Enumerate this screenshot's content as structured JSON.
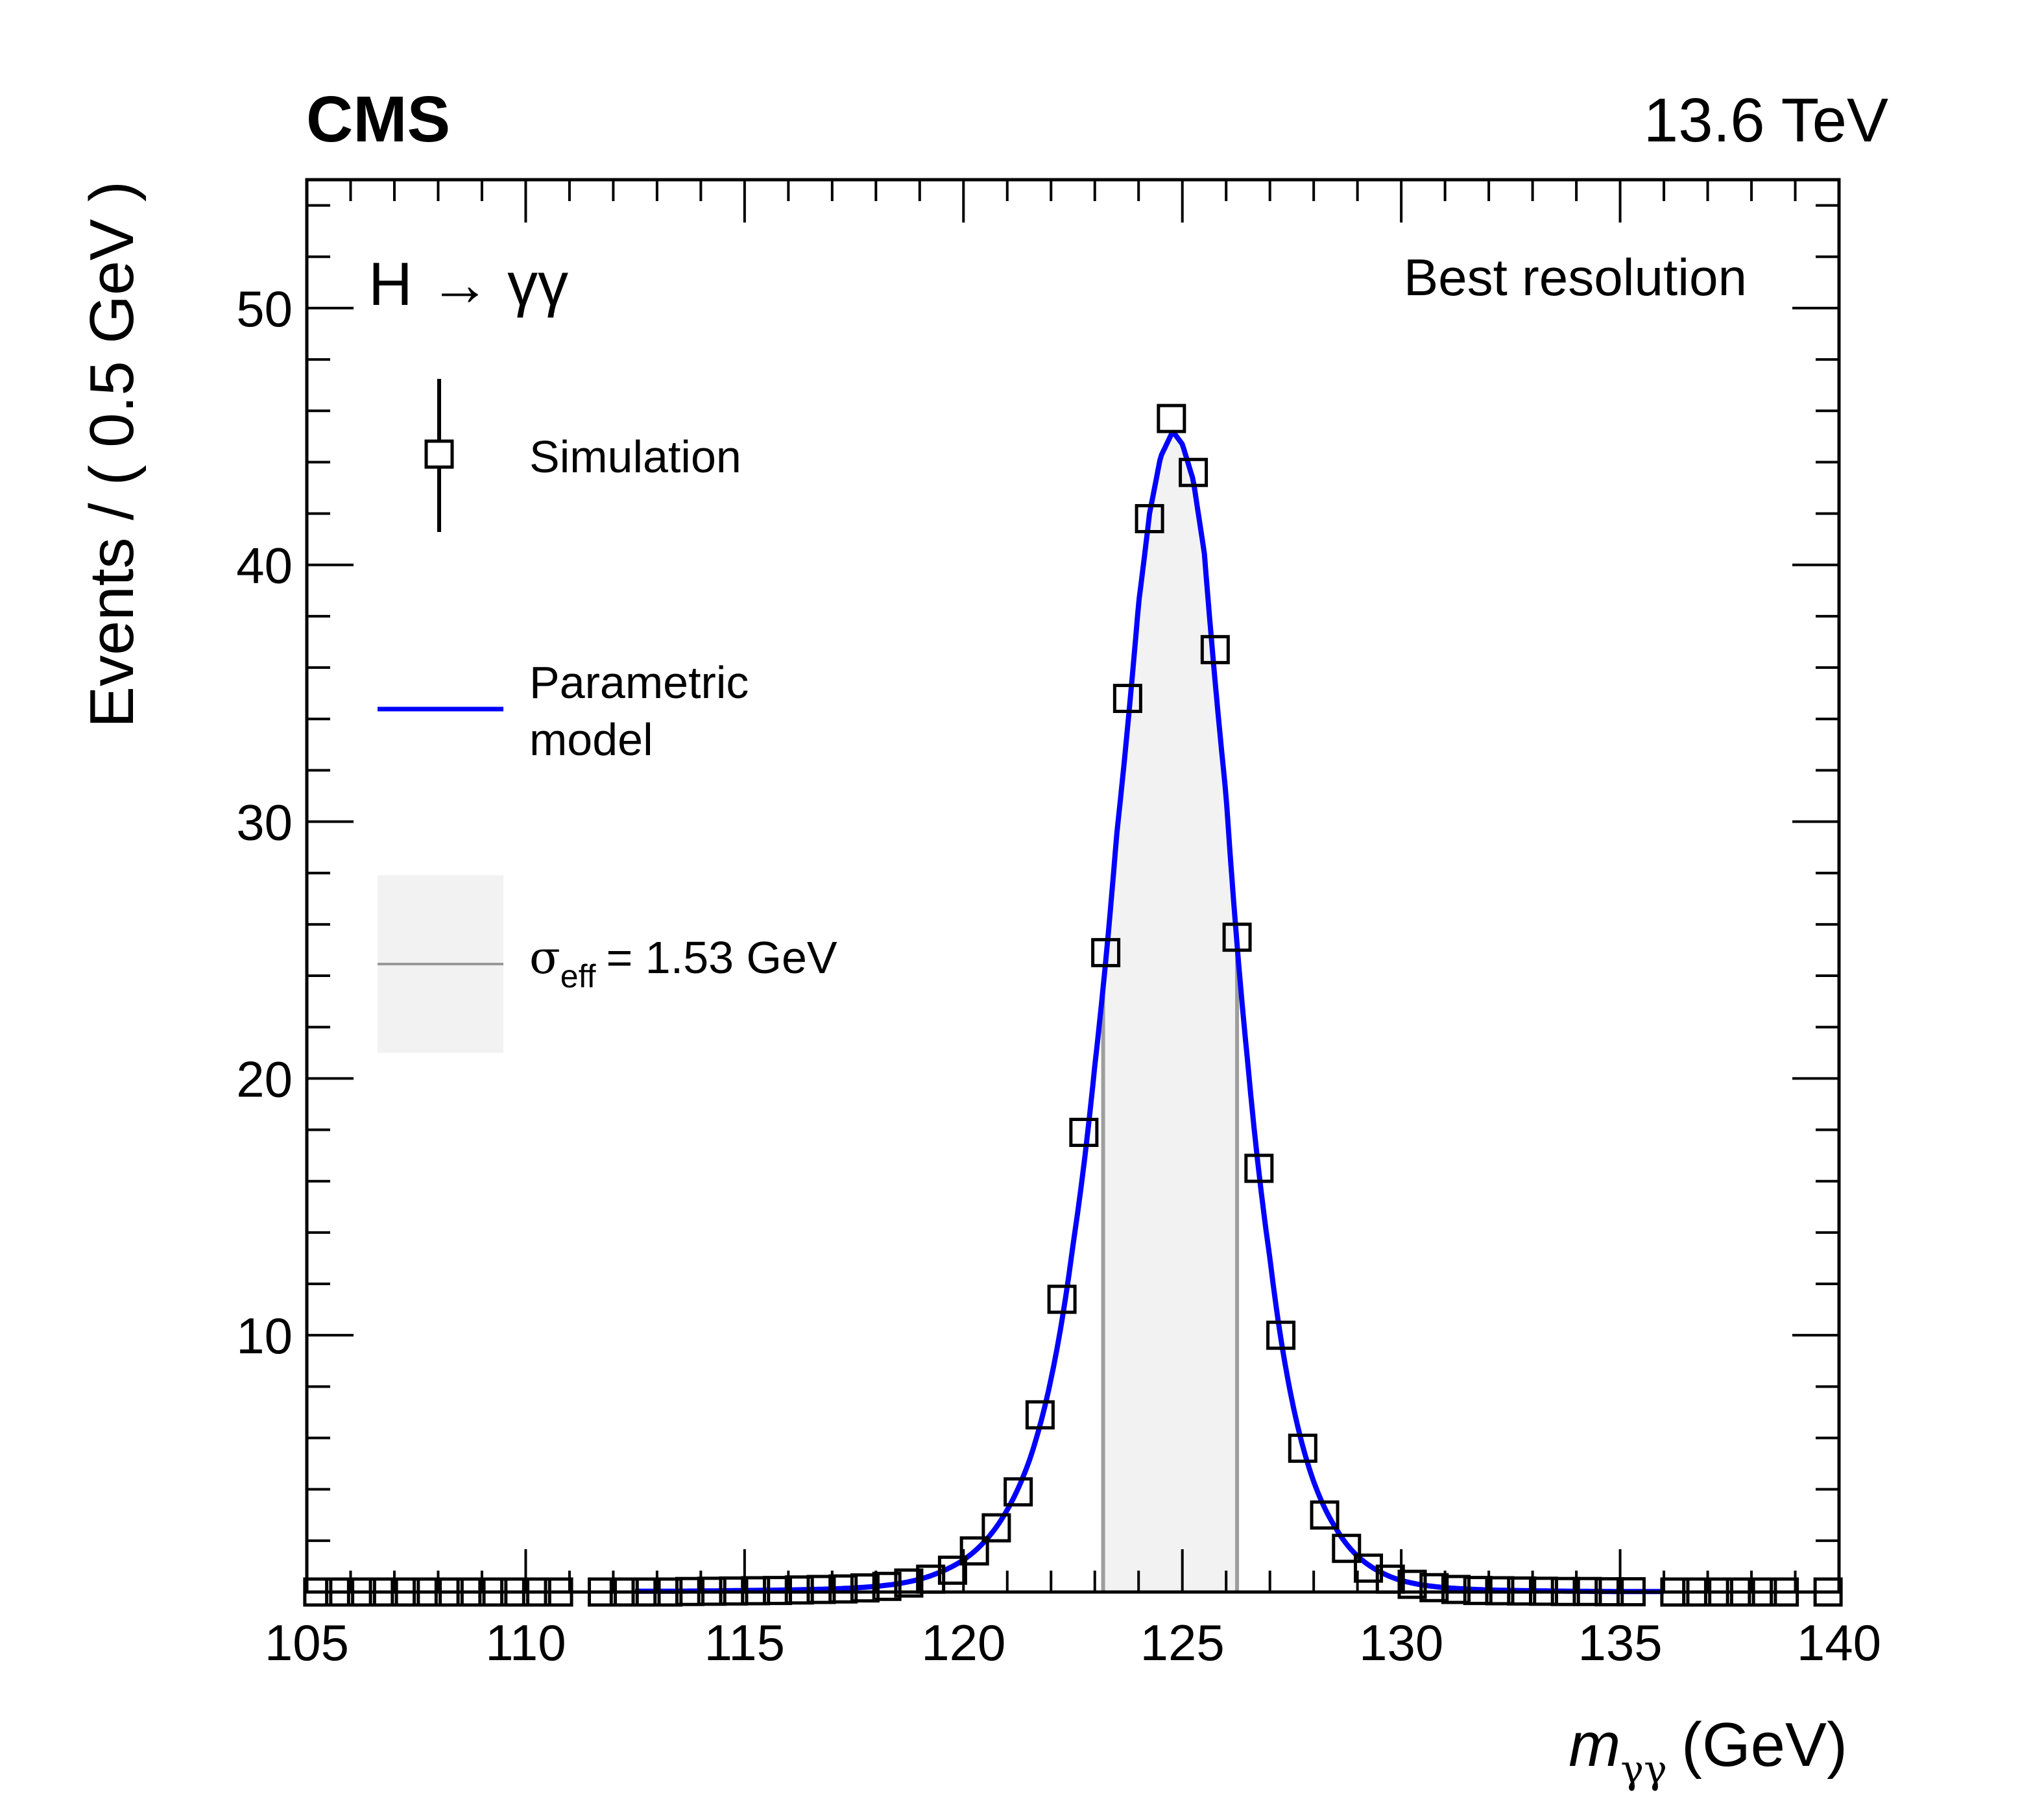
{
  "header": {
    "experiment": "CMS",
    "energy": "13.6 TeV"
  },
  "chart_data": {
    "type": "scatter",
    "title": "",
    "process_label": "H → γγ",
    "category_label": "Best resolution",
    "xlabel": {
      "symbol": "m",
      "subscript": "γγ",
      "unit": "(GeV)"
    },
    "ylabel": "Events / ( 0.5 GeV )",
    "xlim": [
      105,
      140
    ],
    "ylim": [
      0,
      55
    ],
    "x_major_ticks": [
      105,
      110,
      115,
      120,
      125,
      130,
      135,
      140
    ],
    "x_minor_step": 1,
    "y_major_ticks": [
      10,
      20,
      30,
      40,
      50
    ],
    "y_tick_labels": [
      "10",
      "20",
      "30",
      "40",
      "50"
    ],
    "x_tick_labels": [
      "105",
      "110",
      "115",
      "120",
      "125",
      "130",
      "135",
      "140"
    ],
    "y_minor_step": 2,
    "grid": false,
    "legend_placement": "top-left",
    "legend": [
      {
        "label": "Simulation",
        "kind": "marker-open-square-with-errorbar"
      },
      {
        "label": "Parametric model",
        "lines": [
          "Parametric",
          "model"
        ],
        "kind": "line",
        "color": "#0000ff"
      },
      {
        "label": "σeff = 1.53 GeV",
        "symbol": "σ",
        "subscript": "eff",
        "value_text": "= 1.53 GeV",
        "kind": "band",
        "fill": "#f2f2f2",
        "line": "#999999"
      }
    ],
    "sigma_eff_gev": 1.53,
    "sigma_eff_band": [
      123.19,
      126.25
    ],
    "series": [
      {
        "name": "Simulation",
        "marker": "open-square",
        "color": "#000000",
        "x": [
          105.25,
          105.75,
          106.25,
          106.75,
          107.25,
          107.75,
          108.25,
          108.75,
          109.25,
          109.75,
          110.25,
          110.75,
          111.75,
          112.25,
          112.75,
          113.25,
          113.75,
          114.25,
          114.75,
          115.25,
          115.75,
          116.25,
          116.75,
          117.25,
          117.75,
          118.25,
          118.75,
          119.25,
          119.75,
          120.25,
          120.75,
          121.25,
          121.75,
          122.25,
          122.75,
          123.25,
          123.75,
          124.25,
          124.75,
          125.25,
          125.75,
          126.25,
          126.75,
          127.25,
          127.75,
          128.25,
          128.75,
          129.25,
          129.75,
          130.25,
          130.75,
          131.25,
          131.75,
          132.25,
          132.75,
          133.25,
          133.75,
          134.25,
          134.75,
          135.25,
          136.25,
          136.75,
          137.25,
          137.75,
          138.25,
          138.75,
          139.75
        ],
        "y": [
          0,
          0,
          0,
          0,
          0,
          0,
          0,
          0,
          0,
          0,
          0,
          0,
          0,
          0,
          0,
          0,
          0.02,
          0.03,
          0.04,
          0.05,
          0.06,
          0.08,
          0.1,
          0.12,
          0.16,
          0.22,
          0.35,
          0.5,
          0.85,
          1.6,
          2.5,
          3.9,
          6.9,
          11.4,
          17.9,
          24.9,
          34.8,
          41.8,
          45.7,
          43.6,
          36.7,
          25.5,
          16.5,
          10.0,
          5.6,
          3.0,
          1.7,
          0.93,
          0.5,
          0.3,
          0.17,
          0.1,
          0.06,
          0.05,
          0.04,
          0.03,
          0.02,
          0.02,
          0.01,
          0.01,
          0,
          0,
          0,
          0,
          0,
          0,
          0
        ]
      },
      {
        "name": "Parametric model",
        "kind": "line",
        "color": "#0000ff",
        "x": [
          112.5,
          113,
          114,
          115,
          116,
          117,
          117.5,
          118,
          118.5,
          119,
          119.5,
          120,
          120.5,
          121,
          121.5,
          122,
          122.5,
          123,
          123.5,
          124,
          124.25,
          124.5,
          124.78,
          125,
          125.25,
          125.5,
          126,
          126.5,
          127,
          127.5,
          128,
          128.5,
          129,
          129.5,
          130,
          130.5,
          131,
          132,
          133,
          134,
          135,
          136
        ],
        "y": [
          0.03,
          0.03,
          0.04,
          0.06,
          0.08,
          0.12,
          0.16,
          0.22,
          0.32,
          0.5,
          0.8,
          1.25,
          2.0,
          3.2,
          5.1,
          8.3,
          13.5,
          20.5,
          29.5,
          38.5,
          42.0,
          44.2,
          45.2,
          44.7,
          43.3,
          40.5,
          31.0,
          20.5,
          13.0,
          7.5,
          4.3,
          2.5,
          1.4,
          0.8,
          0.45,
          0.27,
          0.17,
          0.08,
          0.05,
          0.03,
          0.02,
          0.02
        ]
      }
    ]
  }
}
